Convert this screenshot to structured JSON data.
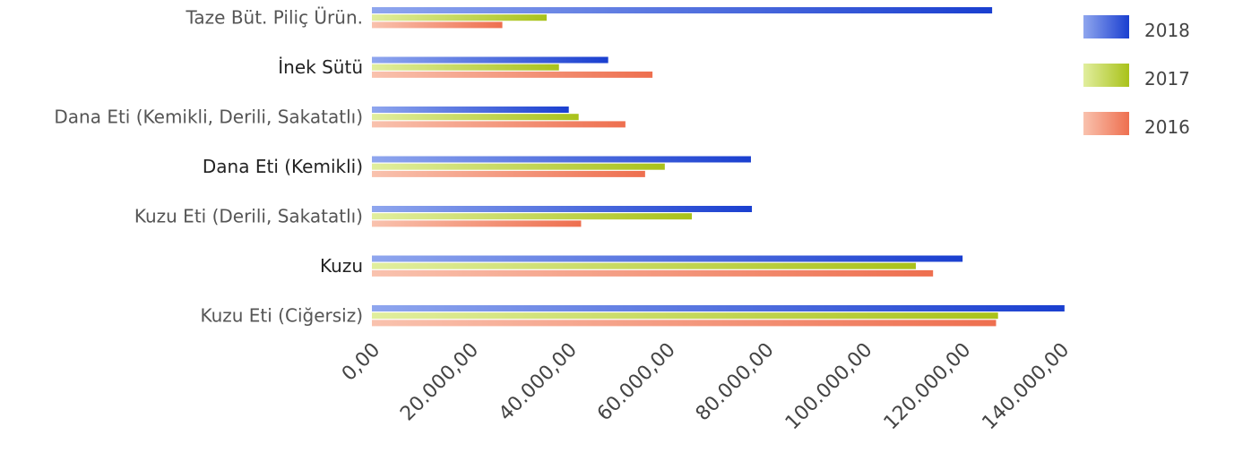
{
  "chart_data": {
    "type": "bar",
    "orientation": "horizontal",
    "categories": [
      "Taze Büt. Piliç Ürün.",
      "İnek Sütü",
      "Dana Eti (Kemikli, Derili, Sakatatlı)",
      "Dana Eti (Kemikli)",
      "Kuzu Eti (Derili, Sakatatlı)",
      "Kuzu",
      "Kuzu Eti (Ciğersiz)"
    ],
    "series": [
      {
        "name": "2018",
        "color": "#1a3fd0",
        "color_light": "#8fa6ee",
        "values": [
          126000,
          48000,
          40000,
          77000,
          77200,
          120000,
          140700
        ]
      },
      {
        "name": "2017",
        "color": "#a9c21a",
        "color_light": "#e1ee9e",
        "values": [
          35500,
          38000,
          42000,
          59500,
          65000,
          110500,
          127200
        ]
      },
      {
        "name": "2016",
        "color": "#ee6f4f",
        "color_light": "#f9c2ae",
        "values": [
          26500,
          57000,
          51500,
          55500,
          42500,
          114000,
          126800
        ]
      }
    ],
    "x_ticks": [
      "0,00",
      "20.000,00",
      "40.000,00",
      "60.000,00",
      "80.000,00",
      "100.000,00",
      "120.000,00",
      "140.000,00"
    ],
    "xlim": [
      0,
      140000
    ],
    "title": "",
    "xlabel": "",
    "ylabel": "",
    "grid": false,
    "legend_position": "top-right"
  }
}
